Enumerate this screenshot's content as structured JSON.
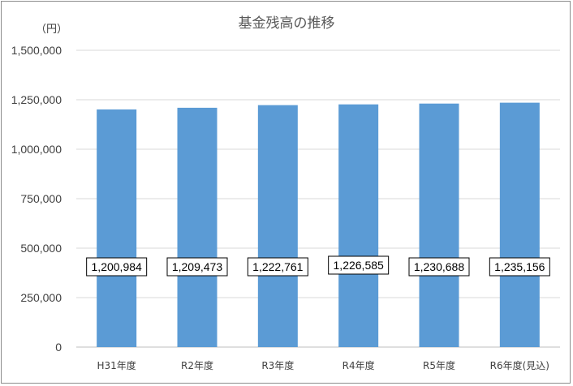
{
  "chart_data": {
    "type": "bar",
    "title": "基金残高の推移",
    "unit_label": "（円）",
    "categories": [
      "H31年度",
      "R2年度",
      "R3年度",
      "R4年度",
      "R5年度",
      "R6年度(見込)"
    ],
    "values": [
      1200984,
      1209473,
      1222761,
      1226585,
      1230688,
      1235156
    ],
    "data_labels": [
      "1,200,984",
      "1,209,473",
      "1,222,761",
      "1,226,585",
      "1,230,688",
      "1,235,156"
    ],
    "y_ticks": [
      0,
      250000,
      500000,
      750000,
      1000000,
      1250000,
      1500000
    ],
    "y_tick_labels": [
      "0",
      "250,000",
      "500,000",
      "750,000",
      "1,000,000",
      "1,250,000",
      "1,500,000"
    ],
    "ylim": [
      0,
      1500000
    ],
    "xlabel": "",
    "ylabel": "",
    "grid": true,
    "legend": "none"
  },
  "colors": {
    "bar": "#5b9bd5",
    "grid": "#d9d9d9",
    "axis": "#bfbfbf"
  }
}
